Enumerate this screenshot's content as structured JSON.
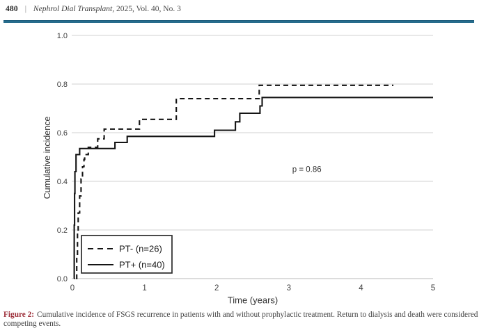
{
  "header": {
    "page_number": "480",
    "separator": "|",
    "journal": "Nephrol Dial Transplant",
    "issue": ", 2025, Vol. 40, No. 3",
    "rule_color": "#266c8c"
  },
  "caption": {
    "label": "Figure 2:",
    "label_color": "#9c2d38",
    "line1": "Cumulative incidence of FSGS recurrence in patients with and without prophylactic treatment. Return to dialysis and death were considered",
    "line2": "competing events."
  },
  "chart_data": {
    "type": "line",
    "subtype": "step",
    "title": "",
    "xlabel": "Time (years)",
    "ylabel": "Cumulative incidence",
    "xlim": [
      0,
      5
    ],
    "ylim": [
      0.0,
      1.0
    ],
    "xticks": [
      0,
      1,
      2,
      3,
      4,
      5
    ],
    "yticks": [
      0.0,
      0.2,
      0.4,
      0.6,
      0.8,
      1.0
    ],
    "grid": "horizontal",
    "gridline_color": "#d9d9d9",
    "axis_line_color": "#c6c6c6",
    "tick_label_color": "#404040",
    "line_color": "#141414",
    "annotation": {
      "text": "p = 0.86",
      "x": 3.25,
      "y": 0.45
    },
    "legend": {
      "position": "lower-left",
      "entries": [
        {
          "label": "PT- (n=26)",
          "line": "dashed"
        },
        {
          "label": "PT+ (n=40)",
          "line": "solid"
        }
      ]
    },
    "series": [
      {
        "name": "PT- (n=26)",
        "style": "dashed",
        "points": [
          [
            0.05,
            0
          ],
          [
            0.06,
            0.1
          ],
          [
            0.07,
            0.19
          ],
          [
            0.08,
            0.27
          ],
          [
            0.1,
            0.34
          ],
          [
            0.12,
            0.41
          ],
          [
            0.14,
            0.46
          ],
          [
            0.16,
            0.49
          ],
          [
            0.17,
            0.51
          ],
          [
            0.22,
            0.54
          ],
          [
            0.35,
            0.575
          ],
          [
            0.44,
            0.615
          ],
          [
            0.93,
            0.655
          ],
          [
            1.44,
            0.74
          ],
          [
            2.59,
            0.795
          ]
        ],
        "end_x": 4.45
      },
      {
        "name": "PT+ (n=40)",
        "style": "solid",
        "points": [
          [
            0.02,
            0
          ],
          [
            0.025,
            0.22
          ],
          [
            0.03,
            0.35
          ],
          [
            0.035,
            0.44
          ],
          [
            0.05,
            0.51
          ],
          [
            0.1,
            0.535
          ],
          [
            0.59,
            0.56
          ],
          [
            0.76,
            0.585
          ],
          [
            1.97,
            0.61
          ],
          [
            2.26,
            0.645
          ],
          [
            2.32,
            0.68
          ],
          [
            2.6,
            0.71
          ],
          [
            2.63,
            0.745
          ]
        ],
        "end_x": 5.0
      }
    ]
  }
}
